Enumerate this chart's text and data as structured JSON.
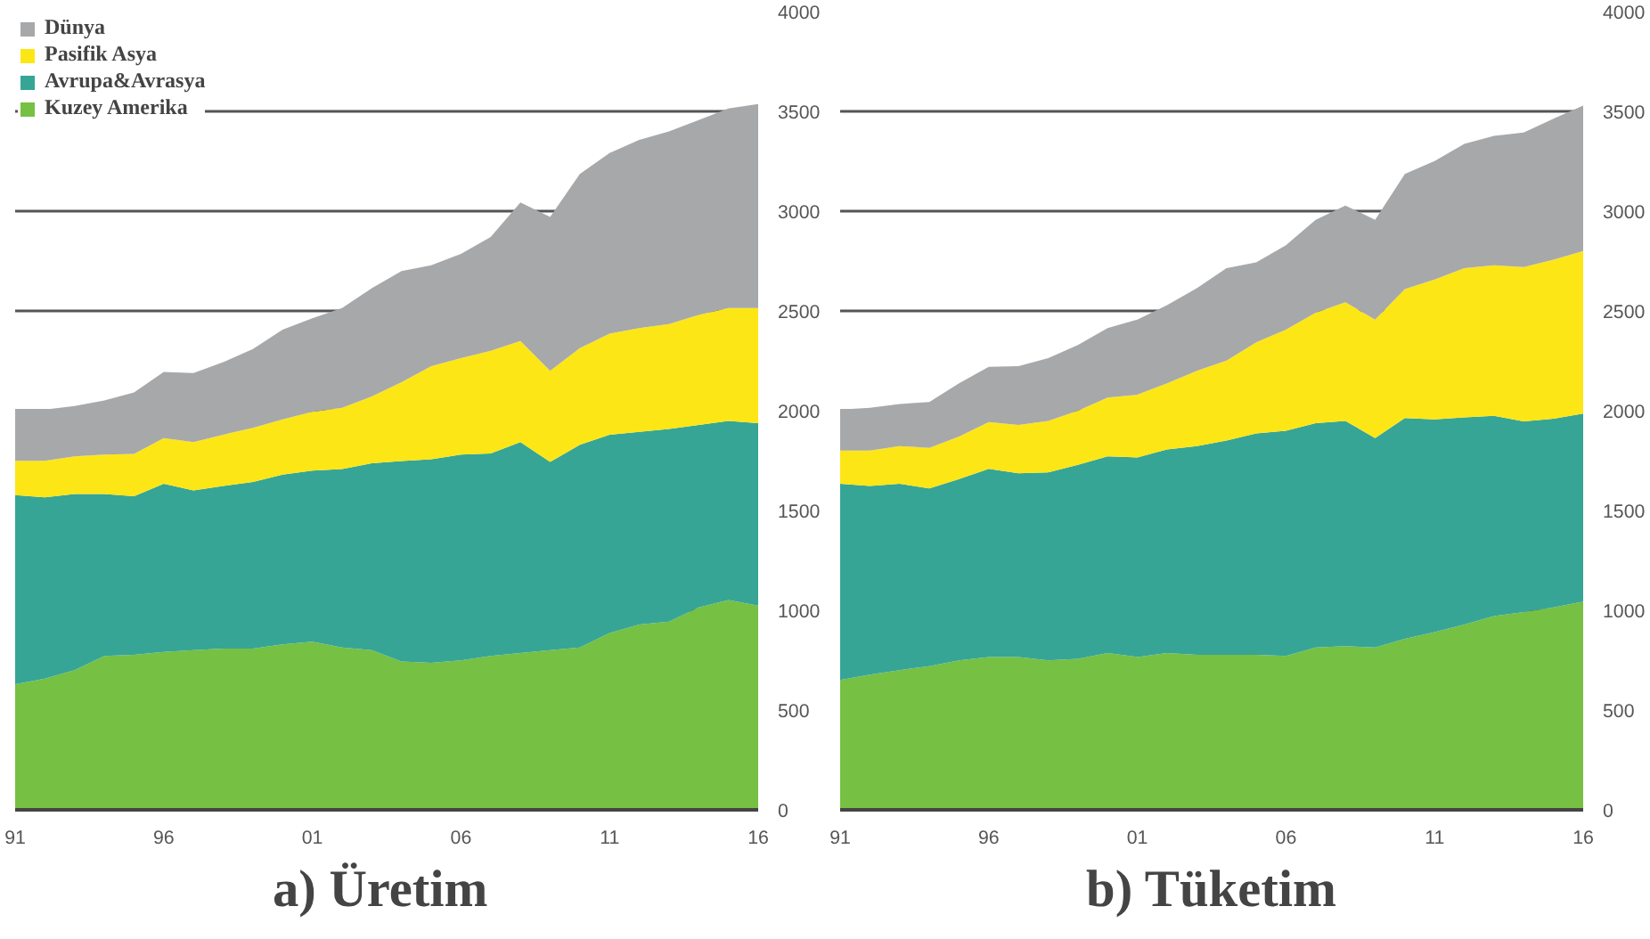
{
  "chart_data": [
    {
      "type": "area",
      "stacked": true,
      "title": "a)  Üretim",
      "x": [
        1991,
        1992,
        1993,
        1994,
        1995,
        1996,
        1997,
        1998,
        1999,
        2000,
        2001,
        2002,
        2003,
        2004,
        2005,
        2006,
        2007,
        2008,
        2009,
        2010,
        2011,
        2012,
        2013,
        2014,
        2015,
        2016
      ],
      "xlim": [
        1991,
        2016
      ],
      "xticks": [
        {
          "value": 1991,
          "label": "91"
        },
        {
          "value": 1996,
          "label": "96"
        },
        {
          "value": 2001,
          "label": "01"
        },
        {
          "value": 2006,
          "label": "06"
        },
        {
          "value": 2011,
          "label": "11"
        },
        {
          "value": 2016,
          "label": "16"
        }
      ],
      "ylim": [
        0,
        4000
      ],
      "yticks": [
        0,
        500,
        1000,
        1500,
        2000,
        2500,
        3000,
        3500,
        4000
      ],
      "grid": "y",
      "legend": "top left",
      "series": [
        {
          "name": "Kuzey Amerika",
          "color": "#76c043",
          "values": [
            629,
            657,
            700,
            771,
            777,
            791,
            800,
            808,
            808,
            829,
            843,
            814,
            800,
            743,
            737,
            749,
            771,
            786,
            800,
            814,
            886,
            929,
            943,
            1014,
            1051,
            1023
          ]
        },
        {
          "name": "Avrupa&Avrasya",
          "color": "#36a595",
          "values": [
            948,
            909,
            883,
            812,
            794,
            843,
            800,
            815,
            835,
            851,
            857,
            894,
            937,
            1005,
            1020,
            1031,
            1015,
            1057,
            943,
            1015,
            994,
            965,
            966,
            915,
            898,
            914
          ]
        },
        {
          "name": "Pasifik Asya",
          "color": "#fde616",
          "values": [
            172,
            183,
            188,
            197,
            212,
            229,
            243,
            257,
            271,
            277,
            294,
            306,
            334,
            395,
            466,
            483,
            514,
            506,
            457,
            485,
            506,
            520,
            525,
            551,
            565,
            577
          ]
        },
        {
          "name": "Dünya",
          "color": "#a7a8aa",
          "values": [
            257,
            257,
            252,
            271,
            308,
            331,
            346,
            363,
            395,
            449,
            469,
            500,
            543,
            557,
            506,
            523,
            571,
            694,
            771,
            872,
            905,
            943,
            966,
            977,
            1000,
            1023
          ]
        }
      ]
    },
    {
      "type": "area",
      "stacked": true,
      "title": "b) Tüketim",
      "x": [
        1991,
        1992,
        1993,
        1994,
        1995,
        1996,
        1997,
        1998,
        1999,
        2000,
        2001,
        2002,
        2003,
        2004,
        2005,
        2006,
        2007,
        2008,
        2009,
        2010,
        2011,
        2012,
        2013,
        2014,
        2015,
        2016
      ],
      "xlim": [
        1991,
        2016
      ],
      "xticks": [
        {
          "value": 1991,
          "label": "91"
        },
        {
          "value": 1996,
          "label": "96"
        },
        {
          "value": 2001,
          "label": "01"
        },
        {
          "value": 2006,
          "label": "06"
        },
        {
          "value": 2011,
          "label": "11"
        },
        {
          "value": 2016,
          "label": "16"
        }
      ],
      "ylim": [
        0,
        4000
      ],
      "yticks": [
        0,
        500,
        1000,
        1500,
        2000,
        2500,
        3000,
        3500,
        4000
      ],
      "grid": "y",
      "series": [
        {
          "color": "#76c043",
          "values": [
            651,
            677,
            700,
            720,
            749,
            766,
            766,
            749,
            757,
            786,
            766,
            786,
            777,
            777,
            777,
            771,
            814,
            820,
            814,
            857,
            891,
            929,
            971,
            991,
            1014,
            1043
          ]
        },
        {
          "color": "#36a595",
          "values": [
            983,
            946,
            934,
            891,
            908,
            943,
            920,
            942,
            972,
            985,
            1000,
            1020,
            1046,
            1074,
            1109,
            1129,
            1123,
            1129,
            1049,
            1106,
            1066,
            1037,
            1003,
            955,
            946,
            943
          ]
        },
        {
          "color": "#fde616",
          "values": [
            166,
            177,
            189,
            203,
            214,
            234,
            243,
            258,
            271,
            295,
            314,
            331,
            377,
            400,
            457,
            506,
            554,
            594,
            594,
            646,
            700,
            748,
            755,
            774,
            797,
            814
          ]
        },
        {
          "color": "#a7a8aa",
          "values": [
            206,
            214,
            211,
            229,
            266,
            277,
            294,
            314,
            329,
            348,
            377,
            392,
            414,
            463,
            400,
            423,
            466,
            485,
            500,
            577,
            594,
            623,
            648,
            674,
            706,
            729
          ]
        }
      ]
    }
  ]
}
